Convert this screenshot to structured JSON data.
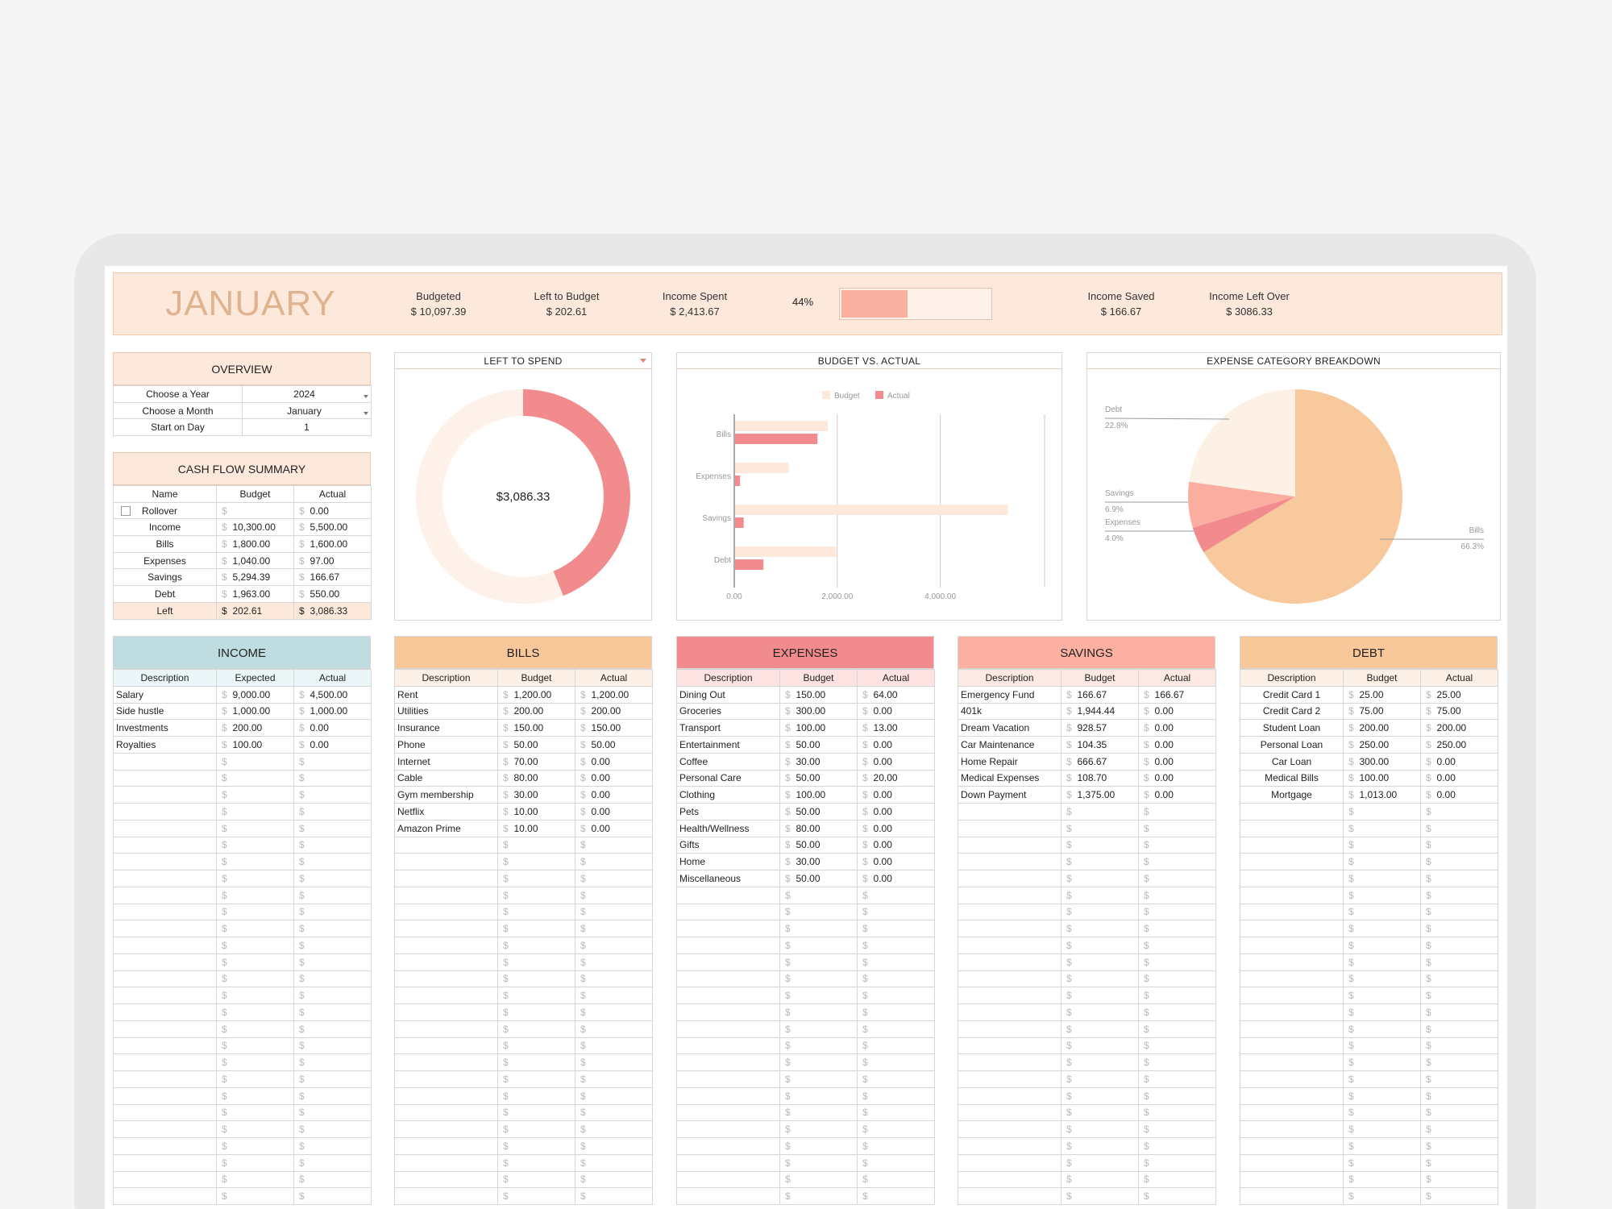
{
  "header": {
    "month": "JANUARY",
    "stats": [
      {
        "label": "Budgeted",
        "value": "$ 10,097.39"
      },
      {
        "label": "Left to Budget",
        "value": "$ 202.61"
      },
      {
        "label": "Income Spent",
        "value": "$ 2,413.67"
      },
      {
        "label": "Income Saved",
        "value": "$ 166.67"
      },
      {
        "label": "Income Left Over",
        "value": "$ 3086.33"
      }
    ],
    "spent_percent_label": "44%",
    "spent_fraction": 0.44
  },
  "overview": {
    "title": "OVERVIEW",
    "rows": [
      {
        "label": "Choose a Year",
        "value": "2024",
        "dropdown": true
      },
      {
        "label": "Choose a Month",
        "value": "January",
        "dropdown": true
      },
      {
        "label": "Start on Day",
        "value": "1",
        "dropdown": false
      }
    ]
  },
  "cashflow": {
    "title": "CASH FLOW SUMMARY",
    "headers": [
      "Name",
      "Budget",
      "Actual"
    ],
    "rows": [
      {
        "name": "Rollover",
        "budget": "",
        "actual": "0.00",
        "checkbox": true
      },
      {
        "name": "Income",
        "budget": "10,300.00",
        "actual": "5,500.00"
      },
      {
        "name": "Bills",
        "budget": "1,800.00",
        "actual": "1,600.00"
      },
      {
        "name": "Expenses",
        "budget": "1,040.00",
        "actual": "97.00"
      },
      {
        "name": "Savings",
        "budget": "5,294.39",
        "actual": "166.67"
      },
      {
        "name": "Debt",
        "budget": "1,963.00",
        "actual": "550.00"
      }
    ],
    "left": {
      "name": "Left",
      "budget": "202.61",
      "actual": "3,086.33"
    },
    "currency": "$"
  },
  "chart_data": [
    {
      "type": "pie",
      "title": "LEFT TO SPEND",
      "center_label": "$3,086.33",
      "slices": [
        {
          "name": "Spent",
          "value": 2413.67,
          "color": "#f28b8e"
        },
        {
          "name": "Left",
          "value": 3086.33,
          "color": "#fdf1ea"
        }
      ]
    },
    {
      "type": "bar",
      "title": "BUDGET VS. ACTUAL",
      "categories": [
        "Bills",
        "Expenses",
        "Savings",
        "Debt"
      ],
      "series": [
        {
          "name": "Budget",
          "values": [
            1800,
            1040,
            5294.39,
            1963
          ],
          "color": "#fde9dc"
        },
        {
          "name": "Actual",
          "values": [
            1600,
            97,
            166.67,
            550
          ],
          "color": "#f28b8e"
        }
      ],
      "xticks": [
        "0.00",
        "2,000.00",
        "4,000.00"
      ],
      "xlim": [
        0,
        6000
      ]
    },
    {
      "type": "pie",
      "title": "EXPENSE CATEGORY BREAKDOWN",
      "slices": [
        {
          "name": "Bills",
          "pct_label": "66.3%",
          "value": 66.3,
          "color": "#f7c99c"
        },
        {
          "name": "Expenses",
          "pct_label": "4.0%",
          "value": 4.0,
          "color": "#f28b8e"
        },
        {
          "name": "Savings",
          "pct_label": "6.9%",
          "value": 6.9,
          "color": "#fbada0"
        },
        {
          "name": "Debt",
          "pct_label": "22.8%",
          "value": 22.8,
          "color": "#fdf1e5"
        }
      ]
    }
  ],
  "categories": [
    {
      "title": "INCOME",
      "head_bg": "#bfdde0",
      "sub_bg": "#eaf6f7",
      "headers": [
        "Description",
        "Expected",
        "Actual"
      ],
      "rows": [
        [
          "Salary",
          "9,000.00",
          "4,500.00"
        ],
        [
          "Side hustle",
          "1,000.00",
          "1,000.00"
        ],
        [
          "Investments",
          "200.00",
          "0.00"
        ],
        [
          "Royalties",
          "100.00",
          "0.00"
        ]
      ],
      "align": "left"
    },
    {
      "title": "BILLS",
      "head_bg": "#f8c89b",
      "sub_bg": "#fdf0e6",
      "headers": [
        "Description",
        "Budget",
        "Actual"
      ],
      "rows": [
        [
          "Rent",
          "1,200.00",
          "1,200.00"
        ],
        [
          "Utilities",
          "200.00",
          "200.00"
        ],
        [
          "Insurance",
          "150.00",
          "150.00"
        ],
        [
          "Phone",
          "50.00",
          "50.00"
        ],
        [
          "Internet",
          "70.00",
          "0.00"
        ],
        [
          "Cable",
          "80.00",
          "0.00"
        ],
        [
          "Gym membership",
          "30.00",
          "0.00"
        ],
        [
          "Netflix",
          "10.00",
          "0.00"
        ],
        [
          "Amazon Prime",
          "10.00",
          "0.00"
        ]
      ],
      "align": "left"
    },
    {
      "title": "EXPENSES",
      "head_bg": "#f28b8e",
      "sub_bg": "#fde2e2",
      "headers": [
        "Description",
        "Budget",
        "Actual"
      ],
      "rows": [
        [
          "Dining Out",
          "150.00",
          "64.00"
        ],
        [
          "Groceries",
          "300.00",
          "0.00"
        ],
        [
          "Transport",
          "100.00",
          "13.00"
        ],
        [
          "Entertainment",
          "50.00",
          "0.00"
        ],
        [
          "Coffee",
          "30.00",
          "0.00"
        ],
        [
          "Personal Care",
          "50.00",
          "20.00"
        ],
        [
          "Clothing",
          "100.00",
          "0.00"
        ],
        [
          "Pets",
          "50.00",
          "0.00"
        ],
        [
          "Health/Wellness",
          "80.00",
          "0.00"
        ],
        [
          "Gifts",
          "50.00",
          "0.00"
        ],
        [
          "Home",
          "30.00",
          "0.00"
        ],
        [
          "Miscellaneous",
          "50.00",
          "0.00"
        ]
      ],
      "align": "left"
    },
    {
      "title": "SAVINGS",
      "head_bg": "#fbb0a1",
      "sub_bg": "#fde9e4",
      "headers": [
        "Description",
        "Budget",
        "Actual"
      ],
      "rows": [
        [
          "Emergency Fund",
          "166.67",
          "166.67"
        ],
        [
          "401k",
          "1,944.44",
          "0.00"
        ],
        [
          "Dream Vacation",
          "928.57",
          "0.00"
        ],
        [
          "Car Maintenance",
          "104.35",
          "0.00"
        ],
        [
          "Home Repair",
          "666.67",
          "0.00"
        ],
        [
          "Medical Expenses",
          "108.70",
          "0.00"
        ],
        [
          "Down Payment",
          "1,375.00",
          "0.00"
        ]
      ],
      "align": "left"
    },
    {
      "title": "DEBT",
      "head_bg": "#f8c89b",
      "sub_bg": "#fdf0e6",
      "headers": [
        "Description",
        "Budget",
        "Actual"
      ],
      "rows": [
        [
          "Credit Card 1",
          "25.00",
          "25.00"
        ],
        [
          "Credit Card 2",
          "75.00",
          "75.00"
        ],
        [
          "Student Loan",
          "200.00",
          "200.00"
        ],
        [
          "Personal Loan",
          "250.00",
          "250.00"
        ],
        [
          "Car Loan",
          "300.00",
          "0.00"
        ],
        [
          "Medical Bills",
          "100.00",
          "0.00"
        ],
        [
          "Mortgage",
          "1,013.00",
          "0.00"
        ]
      ],
      "align": "center"
    }
  ],
  "currency_symbol": "$"
}
